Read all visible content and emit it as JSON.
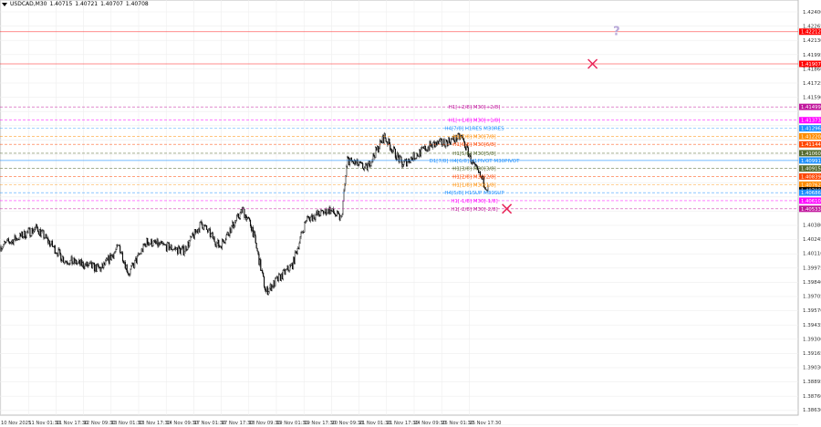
{
  "header": {
    "symbol": "USDCAD,M30",
    "open": "1.40715",
    "high": "1.40721",
    "low": "1.40707",
    "close": "1.40708"
  },
  "chart_data": {
    "type": "candlestick",
    "symbol": "USDCAD",
    "timeframe": "M30",
    "ylim": [
      1.3855,
      1.4252
    ],
    "y_ticks": [
      "1.42400",
      "1.42265",
      "1.42130",
      "1.41995",
      "1.41860",
      "1.41725",
      "1.41590",
      "1.40380",
      "1.40245",
      "1.40110",
      "1.39975",
      "1.39840",
      "1.39705",
      "1.39570",
      "1.39435",
      "1.39300",
      "1.39165",
      "1.39030",
      "1.38895",
      "1.38760",
      "1.38630"
    ],
    "x_ticks": [
      "10 Nov 2025",
      "11 Nov 01:30",
      "11 Nov 17:30",
      "12 Nov 09:30",
      "13 Nov 01:30",
      "13 Nov 17:30",
      "14 Nov 09:30",
      "17 Nov 01:30",
      "17 Nov 17:30",
      "18 Nov 09:30",
      "19 Nov 01:30",
      "19 Nov 17:30",
      "20 Nov 09:30",
      "21 Nov 01:30",
      "21 Nov 17:30",
      "24 Nov 09:30",
      "25 Nov 01:30",
      "25 Nov 17:30"
    ],
    "price_path": [
      {
        "bar": 0,
        "price": 1.40177
      },
      {
        "bar": 42,
        "price": 1.4035
      },
      {
        "bar": 74,
        "price": 1.40047
      },
      {
        "bar": 117,
        "price": 1.39961
      },
      {
        "bar": 138,
        "price": 1.40177
      },
      {
        "bar": 149,
        "price": 1.39918
      },
      {
        "bar": 170,
        "price": 1.4022
      },
      {
        "bar": 213,
        "price": 1.40134
      },
      {
        "bar": 234,
        "price": 1.40393
      },
      {
        "bar": 255,
        "price": 1.40177
      },
      {
        "bar": 282,
        "price": 1.40523
      },
      {
        "bar": 293,
        "price": 1.4035
      },
      {
        "bar": 309,
        "price": 1.39744
      },
      {
        "bar": 340,
        "price": 1.40004
      },
      {
        "bar": 356,
        "price": 1.40436
      },
      {
        "bar": 383,
        "price": 1.40523
      },
      {
        "bar": 397,
        "price": 1.40436
      },
      {
        "bar": 404,
        "price": 1.40999
      },
      {
        "bar": 426,
        "price": 1.40912
      },
      {
        "bar": 447,
        "price": 1.41215
      },
      {
        "bar": 468,
        "price": 1.40955
      },
      {
        "bar": 500,
        "price": 1.41128
      },
      {
        "bar": 521,
        "price": 1.41172
      },
      {
        "bar": 537,
        "price": 1.41215
      },
      {
        "bar": 553,
        "price": 1.40912
      },
      {
        "bar": 569,
        "price": 1.40708
      }
    ],
    "levels": [
      {
        "price": 1.42212,
        "label": "1.42212",
        "color": "#ff0000",
        "style": "solid",
        "text": ""
      },
      {
        "price": 1.41907,
        "label": "1.41907",
        "color": "#ff0000",
        "style": "solid",
        "text": ""
      },
      {
        "price": 1.41499,
        "label": "1.41499",
        "color": "#c0169c",
        "style": "dash",
        "text": "H1[+2/8] M30[+2/8]"
      },
      {
        "price": 1.41373,
        "label": "1.41373",
        "color": "#ff00ff",
        "style": "dash",
        "text": "H1[+1/8] M30[+1/8]"
      },
      {
        "price": 1.41296,
        "label": "1.41296",
        "color": "#1e90ff",
        "style": "dash",
        "text": "H4[7/8] H1RES M30RES"
      },
      {
        "price": 1.4122,
        "label": "1.41220",
        "color": "#ff8c00",
        "style": "dash",
        "text": "H1[7/8] M30[7/8]"
      },
      {
        "price": 1.41144,
        "label": "1.41144",
        "color": "#ff4500",
        "style": "dash",
        "text": "H1[6/8] M30[6/8]"
      },
      {
        "price": 1.4106,
        "label": "1.41060",
        "color": "#556b2f",
        "style": "dash",
        "text": "H1[5/8] M30[5/8]"
      },
      {
        "price": 1.40991,
        "label": "1.40991",
        "color": "#1e90ff",
        "style": "solid",
        "text": "D1[7/8] H4[6/8] H1PIVOT M30PIVOT"
      },
      {
        "price": 1.40915,
        "label": "1.40915",
        "color": "#556b2f",
        "style": "dash",
        "text": "H1[3/8] M30[3/8]"
      },
      {
        "price": 1.40839,
        "label": "1.40839",
        "color": "#ff4500",
        "style": "dash",
        "text": "H1[2/8] M30[2/8]"
      },
      {
        "price": 1.40762,
        "label": "1.40762",
        "color": "#ff8c00",
        "style": "dash",
        "text": "H1[1/8] M30[1/8]"
      },
      {
        "price": 1.40708,
        "label": "1.40708",
        "color": "#000000",
        "style": "none",
        "text": ""
      },
      {
        "price": 1.40686,
        "label": "1.40686",
        "color": "#1e90ff",
        "style": "dash",
        "text": "H4[5/8] H1SUP M30SUP"
      },
      {
        "price": 1.4061,
        "label": "1.40610",
        "color": "#ff00ff",
        "style": "dash",
        "text": "H1[-1/8] M30[-1/8]"
      },
      {
        "price": 1.40533,
        "label": "1.40533",
        "color": "#c0169c",
        "style": "dash",
        "text": "H1[-2/8] M30[-2/8]"
      }
    ],
    "markers": [
      {
        "type": "cross",
        "price": 1.41907,
        "bar": 690,
        "color": "#e8265a"
      },
      {
        "type": "cross",
        "price": 1.40533,
        "bar": 590,
        "color": "#e8265a"
      },
      {
        "type": "question",
        "price": 1.42212,
        "bar": 718,
        "color": "#b8a8d8",
        "text": "?"
      }
    ],
    "grid": true
  }
}
